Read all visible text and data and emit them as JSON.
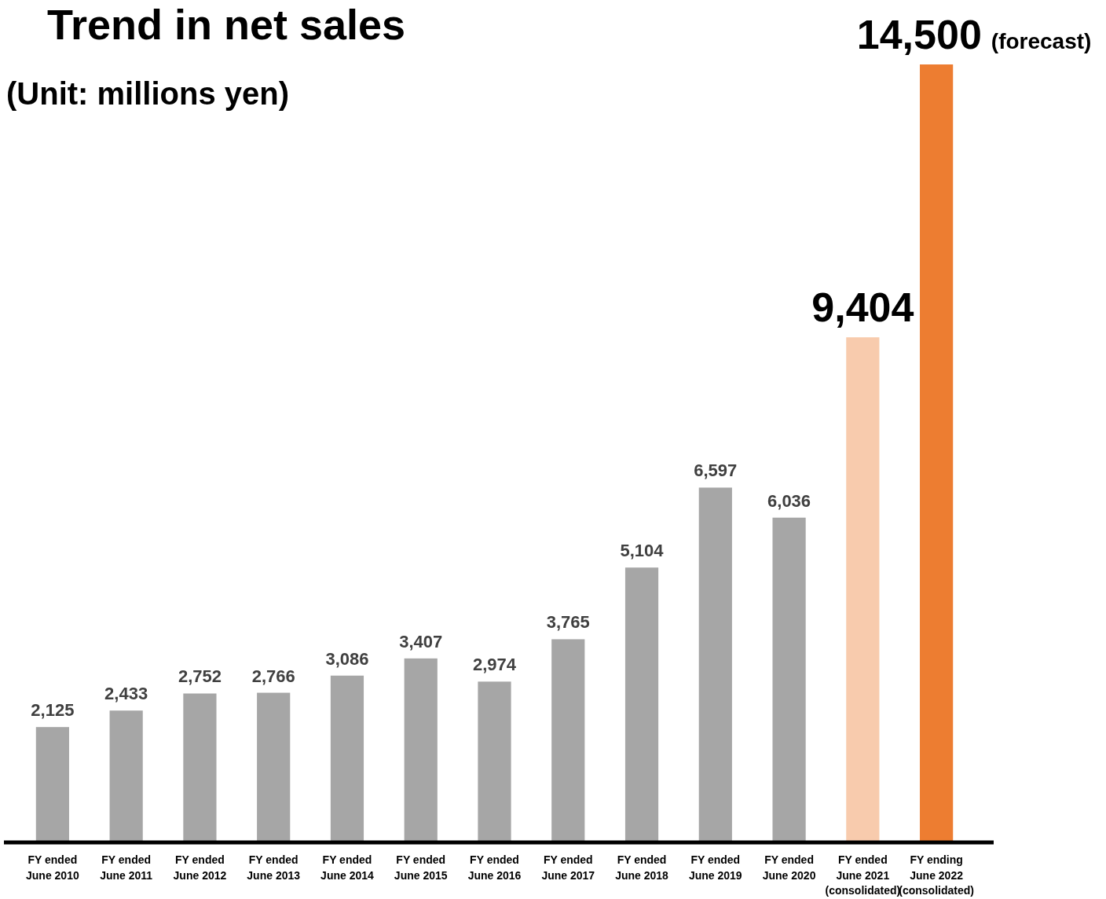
{
  "chart_data": {
    "type": "bar",
    "title": "Trend in net sales",
    "subtitle": "(Unit: millions yen)",
    "categories": [
      "FY ended\nJune 2010",
      "FY ended\nJune 2011",
      "FY ended\nJune 2012",
      "FY ended\nJune 2013",
      "FY ended\nJune 2014",
      "FY ended\nJune 2015",
      "FY ended\nJune 2016",
      "FY ended\nJune 2017",
      "FY ended\nJune 2018",
      "FY ended\nJune 2019",
      "FY ended\nJune 2020",
      "FY ended\nJune 2021\n(consolidated)",
      "FY ending\nJune 2022\n(consolidated)"
    ],
    "values": [
      2125,
      2433,
      2752,
      2766,
      3086,
      3407,
      2974,
      3765,
      5104,
      6597,
      6036,
      9404,
      14500
    ],
    "colors": [
      "#a6a6a6",
      "#a6a6a6",
      "#a6a6a6",
      "#a6a6a6",
      "#a6a6a6",
      "#a6a6a6",
      "#a6a6a6",
      "#a6a6a6",
      "#a6a6a6",
      "#a6a6a6",
      "#a6a6a6",
      "#f8cbad",
      "#ed7d31"
    ],
    "value_labels": [
      "2,125",
      "2,433",
      "2,752",
      "2,766",
      "3,086",
      "3,407",
      "2,974",
      "3,765",
      "5,104",
      "6,597",
      "6,036",
      "9,404",
      "14,500 (forecast)"
    ]
  }
}
